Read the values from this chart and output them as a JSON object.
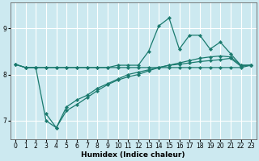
{
  "xlabel": "Humidex (Indice chaleur)",
  "xlim": [
    -0.5,
    23.5
  ],
  "ylim": [
    6.6,
    9.55
  ],
  "xticks": [
    0,
    1,
    2,
    3,
    4,
    5,
    6,
    7,
    8,
    9,
    10,
    11,
    12,
    13,
    14,
    15,
    16,
    17,
    18,
    19,
    20,
    21,
    22,
    23
  ],
  "yticks": [
    7,
    8,
    9
  ],
  "background_color": "#cce9f0",
  "line_color": "#1a7a6e",
  "grid_color": "#ffffff",
  "series": [
    {
      "x": [
        0,
        1,
        2,
        3,
        4,
        5,
        6,
        7,
        8,
        9,
        10,
        11,
        12,
        13,
        14,
        15,
        16,
        17,
        18,
        19,
        20,
        21,
        22,
        23
      ],
      "y": [
        8.22,
        8.15,
        8.15,
        8.15,
        8.15,
        8.15,
        8.15,
        8.15,
        8.15,
        8.15,
        8.15,
        8.15,
        8.15,
        8.15,
        8.15,
        8.15,
        8.15,
        8.15,
        8.15,
        8.15,
        8.15,
        8.15,
        8.15,
        8.2
      ]
    },
    {
      "x": [
        0,
        1,
        2,
        3,
        4,
        5,
        6,
        7,
        8,
        9,
        10,
        11,
        12,
        13,
        14,
        15,
        16,
        17,
        18,
        19,
        20,
        21,
        22,
        23
      ],
      "y": [
        8.22,
        8.15,
        8.15,
        8.15,
        8.15,
        8.15,
        8.15,
        8.15,
        8.15,
        8.15,
        8.2,
        8.2,
        8.2,
        8.5,
        9.05,
        9.22,
        8.55,
        8.85,
        8.85,
        8.55,
        8.7,
        8.45,
        8.2,
        8.2
      ]
    },
    {
      "x": [
        0,
        1,
        2,
        3,
        4,
        5,
        6,
        7,
        8,
        9,
        10,
        11,
        12,
        13,
        14,
        15,
        16,
        17,
        18,
        19,
        20,
        21,
        22,
        23
      ],
      "y": [
        8.22,
        8.15,
        8.15,
        7.0,
        6.85,
        7.3,
        7.45,
        7.55,
        7.7,
        7.8,
        7.9,
        8.0,
        8.05,
        8.1,
        8.15,
        8.2,
        8.22,
        8.25,
        8.28,
        8.3,
        8.32,
        8.35,
        8.18,
        8.2
      ]
    },
    {
      "x": [
        3,
        4,
        5,
        6,
        7,
        8,
        9,
        10,
        11,
        12,
        13,
        14,
        15,
        16,
        17,
        18,
        19,
        20,
        21,
        22,
        23
      ],
      "y": [
        7.15,
        6.85,
        7.22,
        7.35,
        7.5,
        7.65,
        7.78,
        7.88,
        7.95,
        8.0,
        8.08,
        8.15,
        8.2,
        8.25,
        8.3,
        8.35,
        8.38,
        8.4,
        8.38,
        8.2,
        8.2
      ]
    }
  ]
}
